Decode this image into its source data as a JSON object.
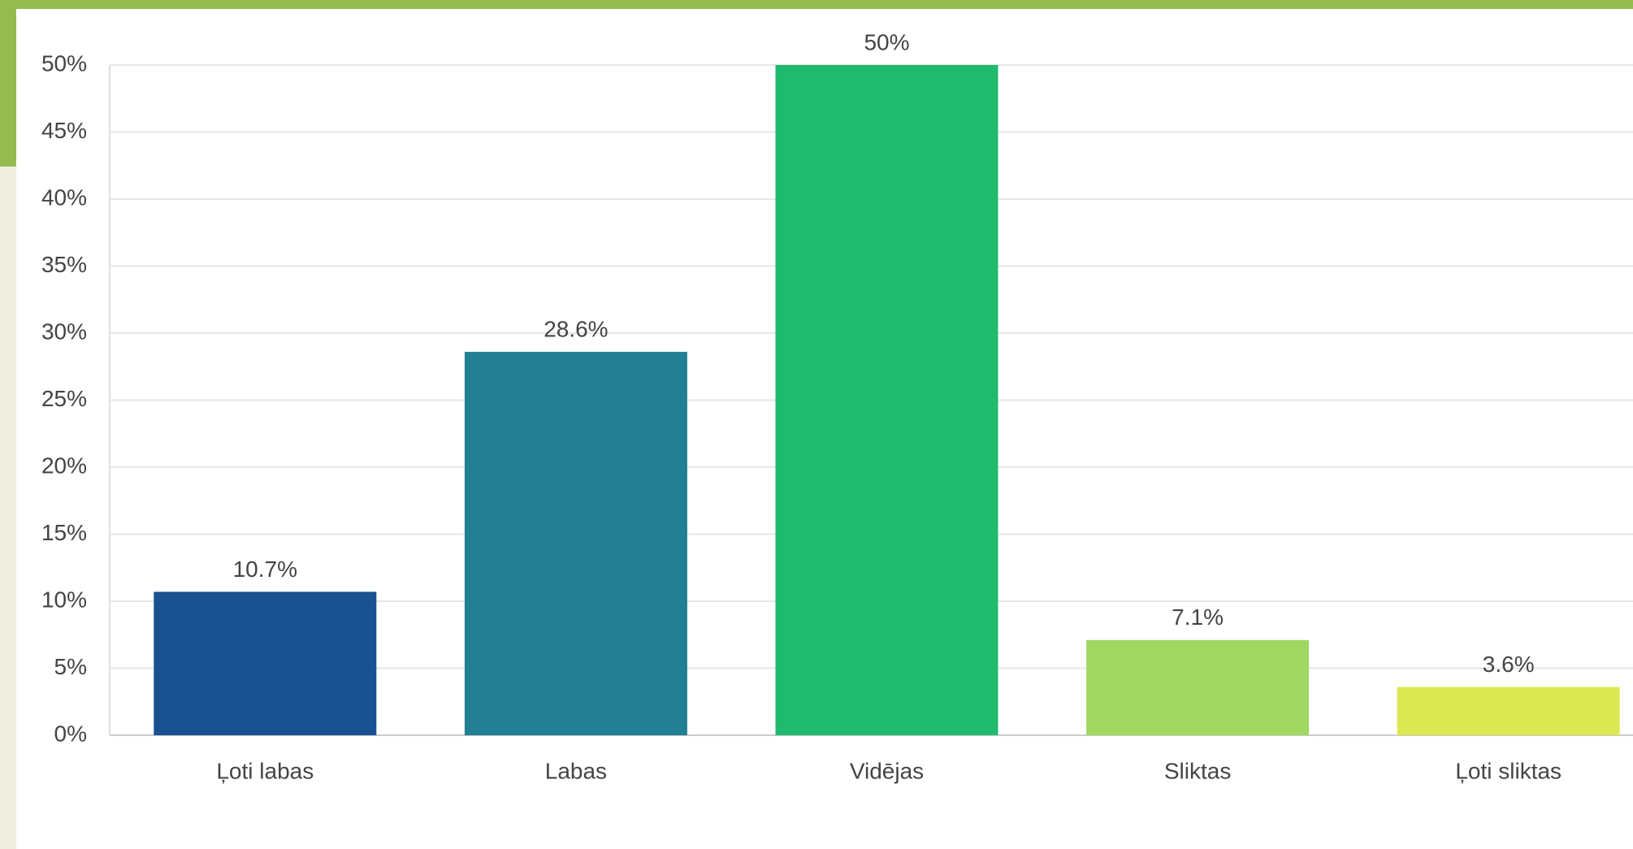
{
  "chart_data": {
    "type": "bar",
    "categories": [
      "Ļoti labas",
      "Labas",
      "Vidējas",
      "Sliktas",
      "Ļoti sliktas"
    ],
    "values": [
      10.7,
      28.6,
      50,
      7.1,
      3.6
    ],
    "value_labels": [
      "10.7%",
      "28.6%",
      "50%",
      "7.1%",
      "3.6%"
    ],
    "colors": [
      "#1a5190",
      "#237f93",
      "#1fba6e",
      "#a0d862",
      "#dbe852"
    ],
    "ylim": [
      0,
      50
    ],
    "yticks": [
      {
        "value": 0,
        "label": "0%"
      },
      {
        "value": 5,
        "label": "5%"
      },
      {
        "value": 10,
        "label": "10%"
      },
      {
        "value": 15,
        "label": "15%"
      },
      {
        "value": 20,
        "label": "20%"
      },
      {
        "value": 25,
        "label": "25%"
      },
      {
        "value": 30,
        "label": "30%"
      },
      {
        "value": 35,
        "label": "35%"
      },
      {
        "value": 40,
        "label": "40%"
      },
      {
        "value": 45,
        "label": "45%"
      },
      {
        "value": 50,
        "label": "50%"
      }
    ],
    "grid": true
  }
}
